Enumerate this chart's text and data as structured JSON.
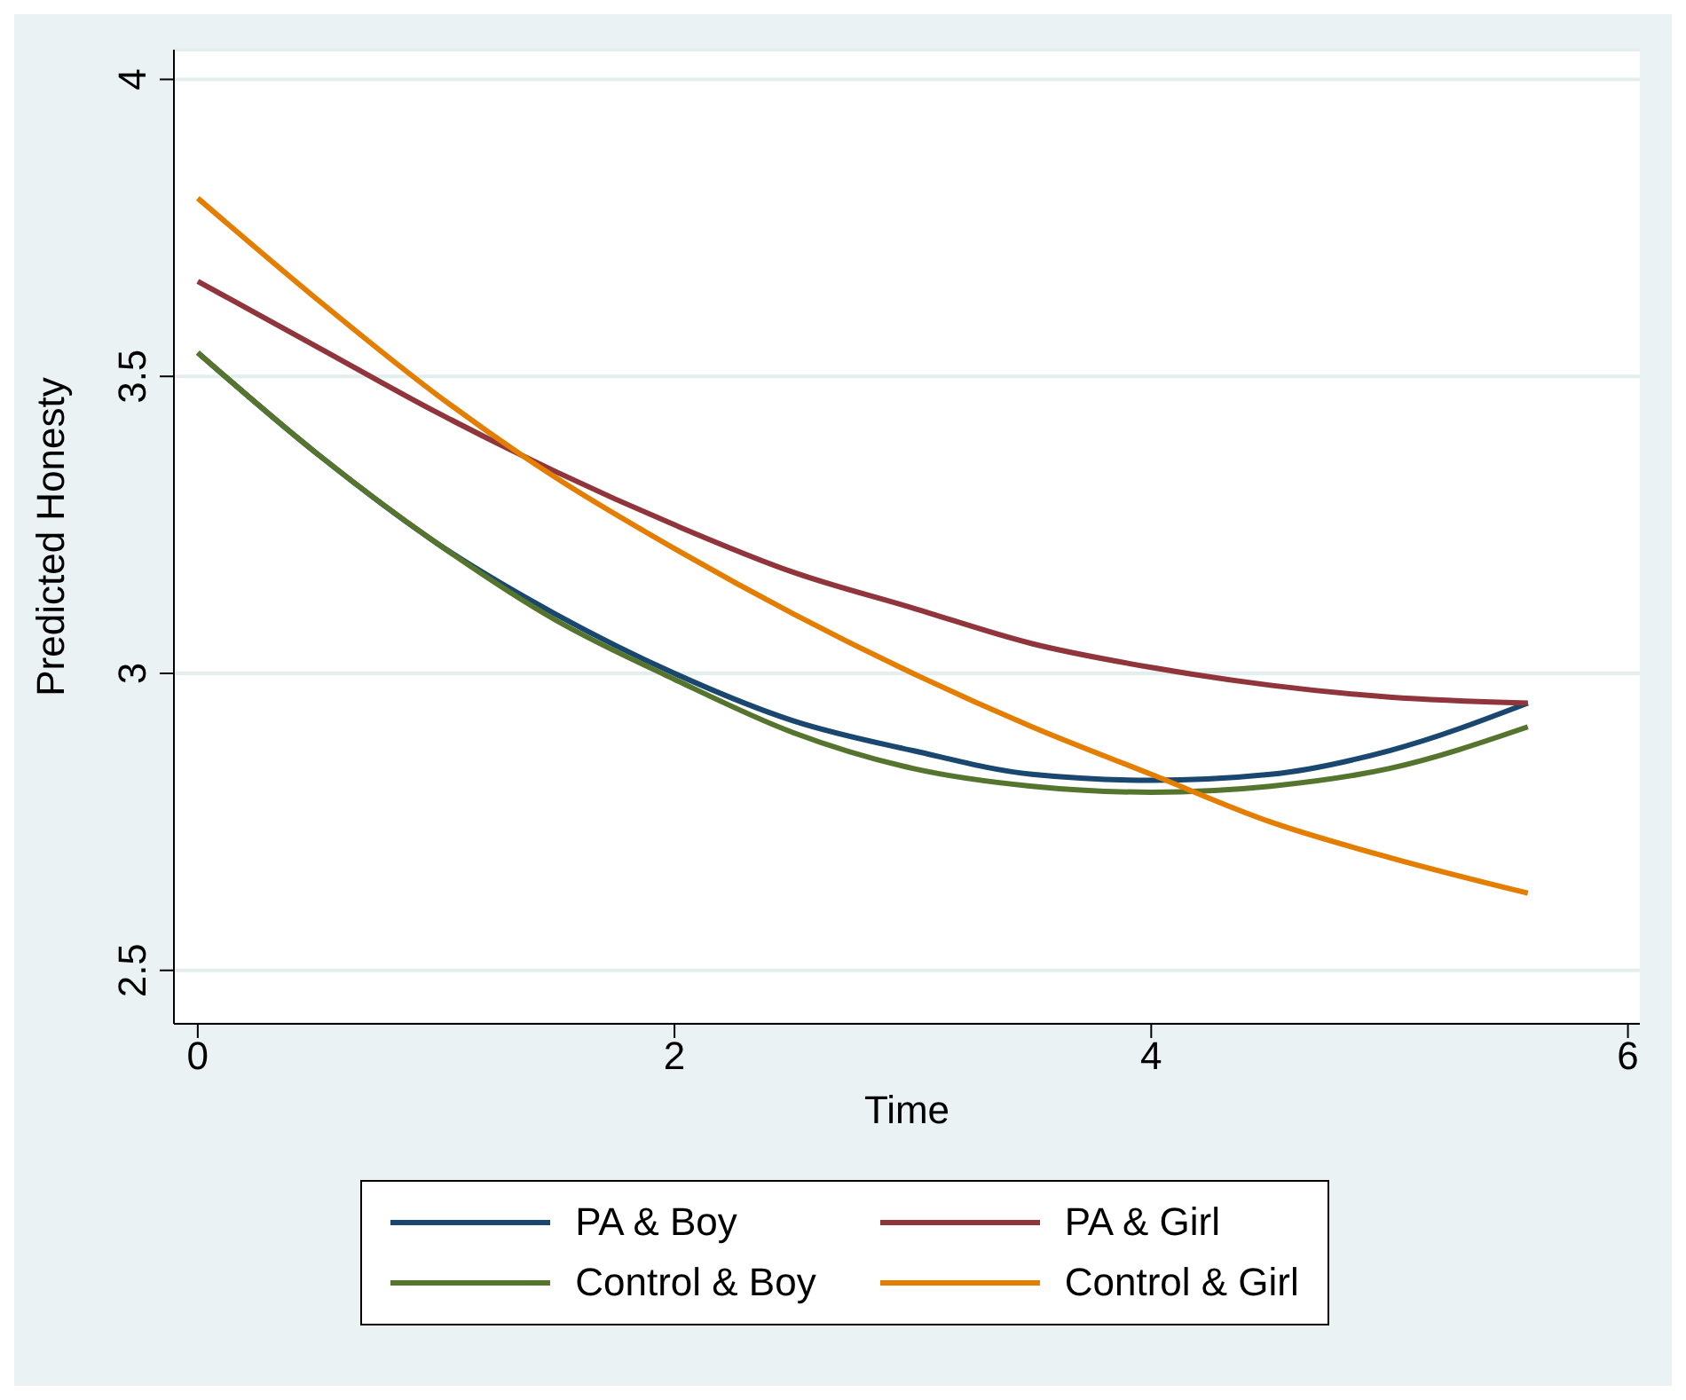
{
  "chart_data": {
    "type": "line",
    "xlabel": "Time",
    "ylabel": "Predicted Honesty",
    "x": [
      0,
      0.5,
      1,
      1.5,
      2,
      2.5,
      3,
      3.5,
      4,
      4.5,
      5,
      5.58
    ],
    "series": [
      {
        "name": "PA & Boy",
        "color": "#1a476f",
        "values": [
          3.54,
          3.37,
          3.22,
          3.1,
          3.0,
          2.92,
          2.87,
          2.83,
          2.82,
          2.83,
          2.87,
          2.95
        ]
      },
      {
        "name": "PA & Girl",
        "color": "#90353b",
        "values": [
          3.66,
          3.55,
          3.44,
          3.34,
          3.25,
          3.17,
          3.11,
          3.05,
          3.01,
          2.98,
          2.96,
          2.95
        ]
      },
      {
        "name": "Control & Boy",
        "color": "#55752f",
        "values": [
          3.54,
          3.37,
          3.22,
          3.09,
          2.99,
          2.9,
          2.84,
          2.81,
          2.8,
          2.81,
          2.84,
          2.91
        ]
      },
      {
        "name": "Control & Girl",
        "color": "#e37e00",
        "values": [
          3.8,
          3.63,
          3.47,
          3.33,
          3.21,
          3.1,
          3.0,
          2.91,
          2.83,
          2.75,
          2.69,
          2.63
        ]
      }
    ],
    "xlim": [
      -0.1,
      6.05
    ],
    "xticks": [
      0,
      2,
      4,
      6
    ],
    "ylim": [
      2.41,
      4.05
    ],
    "yticks": [
      2.5,
      3,
      3.5,
      4
    ],
    "grid": "y",
    "legend": "bottom",
    "marker": "none",
    "line_style": "solid"
  }
}
